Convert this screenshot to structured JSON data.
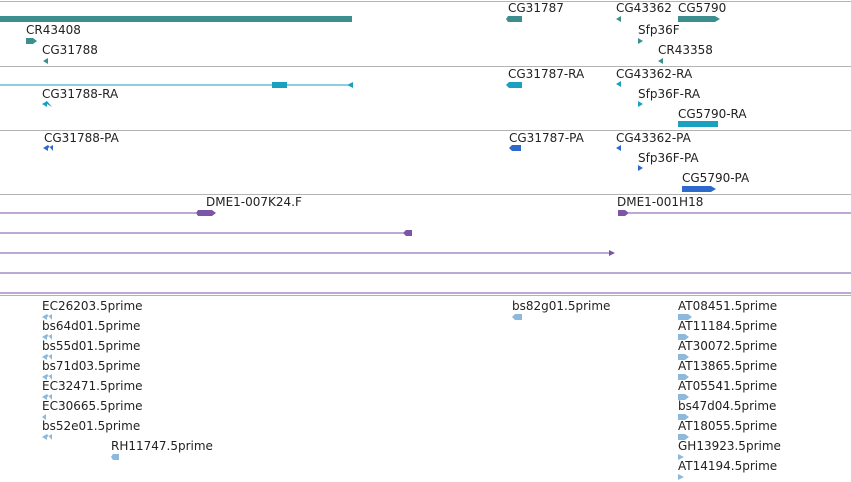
{
  "colors": {
    "gene": "#3d8f8f",
    "transcript": "#1aa0c0",
    "protein": "#2d6acc",
    "clone": "#7a55a8",
    "est": "#8cb9dc",
    "separator": "#b4b4b4",
    "text": "#222222"
  },
  "tracks": {
    "genes": {
      "labels": [
        "CR43408",
        "CG31788",
        "CG31787",
        "CG43362",
        "CG5790",
        "Sfp36F",
        "CR43358"
      ]
    },
    "transcripts": {
      "labels": [
        "CG31788-RA",
        "CG31787-RA",
        "CG43362-RA",
        "Sfp36F-RA",
        "CG5790-RA"
      ]
    },
    "proteins": {
      "labels": [
        "CG31788-PA",
        "CG31787-PA",
        "CG43362-PA",
        "Sfp36F-PA",
        "CG5790-PA"
      ]
    },
    "clones": {
      "labels": [
        "DME1-007K24.F",
        "DME1-001H18"
      ]
    },
    "ests": {
      "left": [
        "EC26203.5prime",
        "bs64d01.5prime",
        "bs55d01.5prime",
        "bs71d03.5prime",
        "EC32471.5prime",
        "EC30665.5prime",
        "bs52e01.5prime"
      ],
      "left_extra": "RH11747.5prime",
      "middle": "bs82g01.5prime",
      "right": [
        "AT08451.5prime",
        "AT11184.5prime",
        "AT30072.5prime",
        "AT13865.5prime",
        "AT05541.5prime",
        "bs47d04.5prime",
        "AT18055.5prime",
        "GH13923.5prime",
        "AT14194.5prime"
      ]
    }
  }
}
